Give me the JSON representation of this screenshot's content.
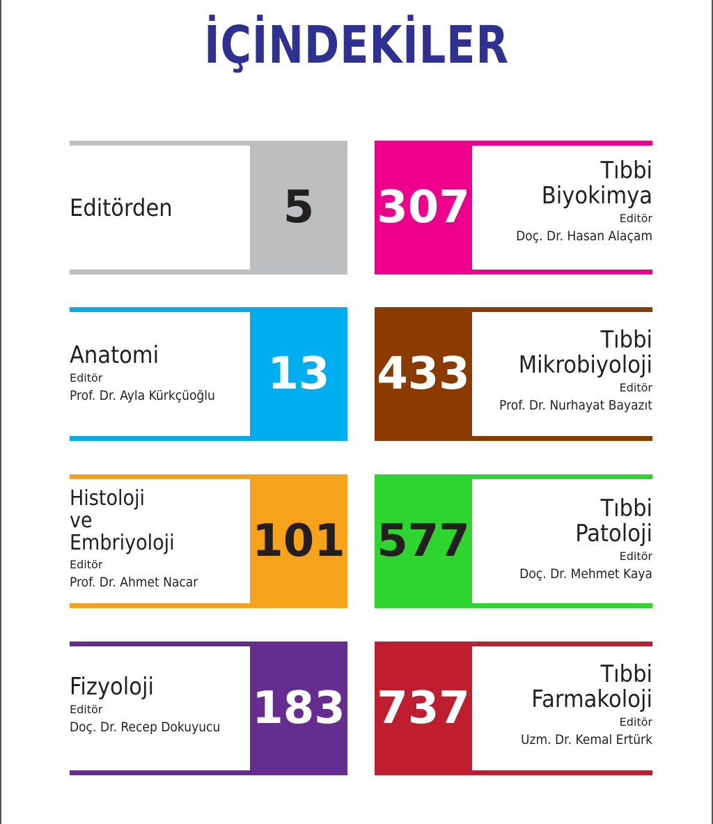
{
  "title": "İÇİNDEKİLER",
  "left": [
    {
      "subject": [
        "Editörden"
      ],
      "role": "",
      "person": "",
      "page": "5",
      "color": "#bcbec0",
      "num_color": "#231f20"
    },
    {
      "subject": [
        "Anatomi"
      ],
      "role": "Editör",
      "person": "Prof. Dr. Ayla Kürkçüoğlu",
      "page": "13",
      "color": "#00aeef",
      "num_color": "#ffffff"
    },
    {
      "subject": [
        "Histoloji",
        "ve",
        "Embriyoloji"
      ],
      "role": "Editör",
      "person": "Prof. Dr. Ahmet Nacar",
      "page": "101",
      "color": "#f7a21b",
      "num_color": "#231f20"
    },
    {
      "subject": [
        "Fizyoloji"
      ],
      "role": "Editör",
      "person": "Doç. Dr. Recep Dokuyucu",
      "page": "183",
      "color": "#662d91",
      "num_color": "#ffffff"
    }
  ],
  "right": [
    {
      "subject": [
        "Tıbbi",
        "Biyokimya"
      ],
      "role": "Editör",
      "person": "Doç. Dr. Hasan Alaçam",
      "page": "307",
      "color": "#ec008c",
      "num_color": "#ffffff"
    },
    {
      "subject": [
        "Tıbbi",
        "Mikrobiyoloji"
      ],
      "role": "Editör",
      "person": "Prof. Dr. Nurhayat Bayazıt",
      "page": "433",
      "color": "#8b3a00",
      "num_color": "#ffffff"
    },
    {
      "subject": [
        "Tıbbi",
        "Patoloji"
      ],
      "role": "Editör",
      "person": "Doç. Dr. Mehmet Kaya",
      "page": "577",
      "color": "#2fd52f",
      "num_color": "#231f20"
    },
    {
      "subject": [
        "Tıbbi",
        "Farmakoloji"
      ],
      "role": "Editör",
      "person": "Uzm. Dr. Kemal Ertürk",
      "page": "737",
      "color": "#be1e2d",
      "num_color": "#ffffff"
    }
  ]
}
